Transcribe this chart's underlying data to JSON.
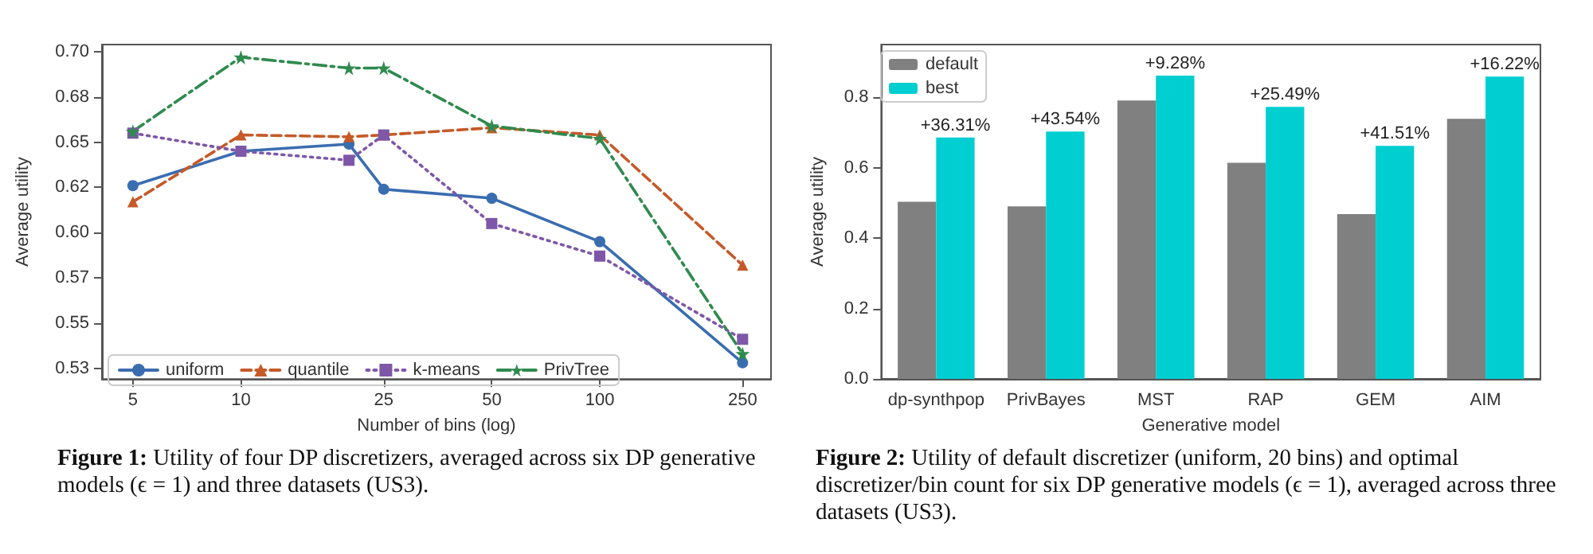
{
  "chart_data": [
    {
      "type": "line",
      "xlabel": "Number of bins (log)",
      "ylabel": "Average utility",
      "log": "x",
      "xlim": [
        4.1,
        300
      ],
      "xticks": [
        5,
        10,
        25,
        50,
        100,
        250
      ],
      "ylim": [
        0.519,
        0.704
      ],
      "yticks": [
        {
          "value": 0.525,
          "label": "0.53"
        },
        {
          "value": 0.55,
          "label": "0.55"
        },
        {
          "value": 0.575,
          "label": "0.57"
        },
        {
          "value": 0.6,
          "label": "0.60"
        },
        {
          "value": 0.625,
          "label": "0.62"
        },
        {
          "value": 0.65,
          "label": "0.65"
        },
        {
          "value": 0.675,
          "label": "0.68"
        },
        {
          "value": 0.7,
          "label": "0.70"
        }
      ],
      "x": [
        5,
        10,
        20,
        25,
        50,
        100,
        250
      ],
      "grid": false,
      "legend": "bottom left",
      "series": [
        {
          "name": "uniform",
          "color": "#3a6db0",
          "marker": "circle",
          "line_style": "solid",
          "values": [
            0.626,
            0.645,
            0.649,
            0.624,
            0.619,
            0.595,
            0.528
          ]
        },
        {
          "name": "quantile",
          "color": "#c55a28",
          "marker": "triangle",
          "line_style": "dashed",
          "values": [
            0.617,
            0.654,
            0.653,
            0.654,
            0.658,
            0.654,
            0.582
          ]
        },
        {
          "name": "k-means",
          "color": "#7e57a8",
          "marker": "square",
          "line_style": "dotted",
          "values": [
            0.655,
            0.645,
            0.64,
            0.654,
            0.605,
            0.587,
            0.541
          ]
        },
        {
          "name": "PrivTree",
          "color": "#2f8a4e",
          "marker": "star",
          "line_style": "dashdot",
          "values": [
            0.656,
            0.697,
            0.691,
            0.691,
            0.659,
            0.652,
            0.533
          ]
        }
      ],
      "annotations": [
        "Figure 1: Utility of four DP discretizers, averaged across six DP generative models (ϵ = 1) and three datasets (US3)."
      ]
    },
    {
      "type": "bar",
      "xlabel": "Generative model",
      "ylabel": "Average utility",
      "categories": [
        "dp-synthpop",
        "PrivBayes",
        "MST",
        "RAP",
        "GEM",
        "AIM"
      ],
      "ylim": [
        0,
        0.95
      ],
      "yticks": [
        {
          "value": 0,
          "label": "0.0"
        },
        {
          "value": 0.2,
          "label": "0.2"
        },
        {
          "value": 0.4,
          "label": "0.4"
        },
        {
          "value": 0.6,
          "label": "0.6"
        },
        {
          "value": 0.8,
          "label": "0.8"
        }
      ],
      "grid": false,
      "legend": "top left",
      "series": [
        {
          "name": "default",
          "color": "#808080",
          "values": [
            0.503,
            0.49,
            0.791,
            0.614,
            0.468,
            0.739
          ]
        },
        {
          "name": "best",
          "color": "#00ced1",
          "values": [
            0.686,
            0.703,
            0.862,
            0.773,
            0.662,
            0.859
          ]
        }
      ],
      "annotations": [
        "Figure 2: Utility of default discretizer (uniform, 20 bins) and optimal discretizer/bin count for six DP generative models (ϵ = 1), averaged across three datasets (US3).",
        {
          "text": "+36.31%",
          "x": "dp-synthpop",
          "y": 0.686
        },
        {
          "text": "+43.54%",
          "x": "PrivBayes",
          "y": 0.703
        },
        {
          "text": "+9.28%",
          "x": "MST",
          "y": 0.862
        },
        {
          "text": "+25.49%",
          "x": "RAP",
          "y": 0.773
        },
        {
          "text": "+41.51%",
          "x": "GEM",
          "y": 0.662
        },
        {
          "text": "+16.22%",
          "x": "AIM",
          "y": 0.859
        }
      ]
    }
  ]
}
